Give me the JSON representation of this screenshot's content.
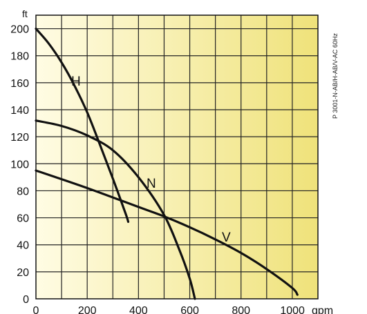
{
  "chart_data": {
    "type": "line",
    "x_unit": "gpm",
    "y_unit": "ft",
    "xlim": [
      0,
      1100
    ],
    "ylim": [
      0,
      210
    ],
    "x_ticks": [
      "0",
      "200",
      "400",
      "600",
      "800",
      "1000"
    ],
    "y_ticks": [
      "0",
      "20",
      "40",
      "60",
      "80",
      "100",
      "120",
      "140",
      "160",
      "180",
      "200"
    ],
    "grid": true,
    "series": [
      {
        "name": "H",
        "x": [
          0,
          50,
          100,
          150,
          200,
          250,
          300,
          350,
          360
        ],
        "y": [
          200,
          189,
          175,
          158,
          138,
          114,
          89,
          63,
          57
        ]
      },
      {
        "name": "N",
        "x": [
          0,
          100,
          200,
          300,
          400,
          500,
          560,
          600,
          620
        ],
        "y": [
          132,
          128,
          121,
          110,
          90,
          62,
          36,
          15,
          0
        ]
      },
      {
        "name": "V",
        "x": [
          0,
          200,
          400,
          500,
          600,
          700,
          800,
          900,
          1000,
          1020
        ],
        "y": [
          95,
          82,
          68,
          61,
          53,
          44,
          34,
          22,
          8,
          3
        ]
      }
    ],
    "annotation": "P 3001-N-AB/H-AB/V-AC 60Hz",
    "background_gradient": [
      "#fffce4",
      "#efe27a"
    ],
    "line_color": "#111111"
  }
}
